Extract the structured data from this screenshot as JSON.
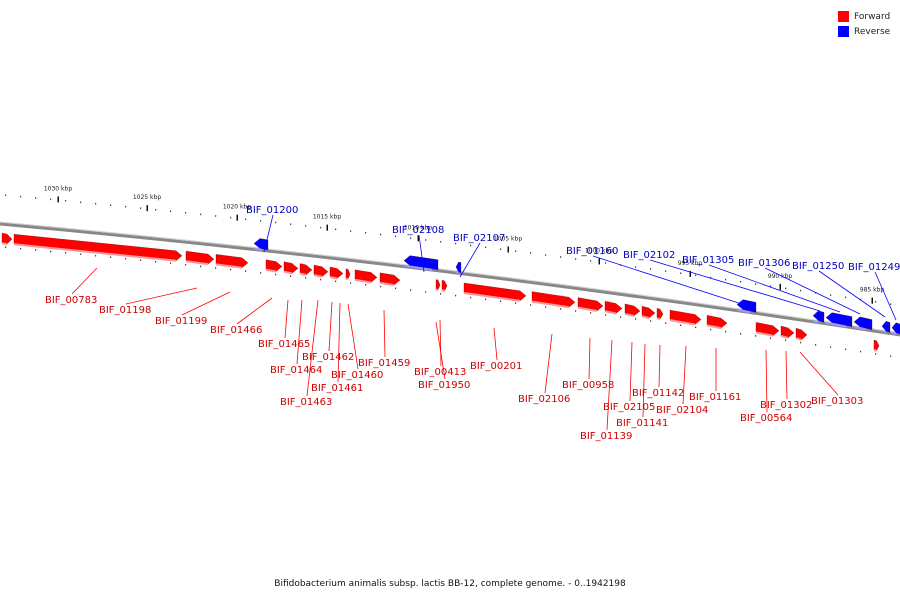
{
  "legend": {
    "forward_label": "Forward",
    "reverse_label": "Reverse",
    "forward_color": "#ff0000",
    "reverse_color": "#0000ff"
  },
  "caption": "Bifidobacterium animalis subsp. lactis BB-12, complete genome. - 0..1942198",
  "scale_ticks": [
    "1030 kbp",
    "1025 kbp",
    "1020 kbp",
    "1015 kbp",
    "1010 kbp",
    "1005 kbp",
    "1000 kbp",
    "995 kbp",
    "990 kbp",
    "985 kbp"
  ],
  "forward_genes": [
    "BIF_00783",
    "BIF_01198",
    "BIF_01199",
    "BIF_01466",
    "BIF_01465",
    "BIF_01464",
    "BIF_01463",
    "BIF_01462",
    "BIF_01461",
    "BIF_01460",
    "BIF_01459",
    "BIF_00413",
    "BIF_01950",
    "BIF_00201",
    "BIF_02106",
    "BIF_00958",
    "BIF_01139",
    "BIF_02105",
    "BIF_01141",
    "BIF_01142",
    "BIF_02104",
    "BIF_01161",
    "BIF_00564",
    "BIF_01302",
    "BIF_01303"
  ],
  "reverse_genes": [
    "BIF_01200",
    "BIF_02108",
    "BIF_02107",
    "BIF_01160",
    "BIF_02102",
    "BIF_01305",
    "BIF_01306",
    "BIF_01250",
    "BIF_01249"
  ]
}
